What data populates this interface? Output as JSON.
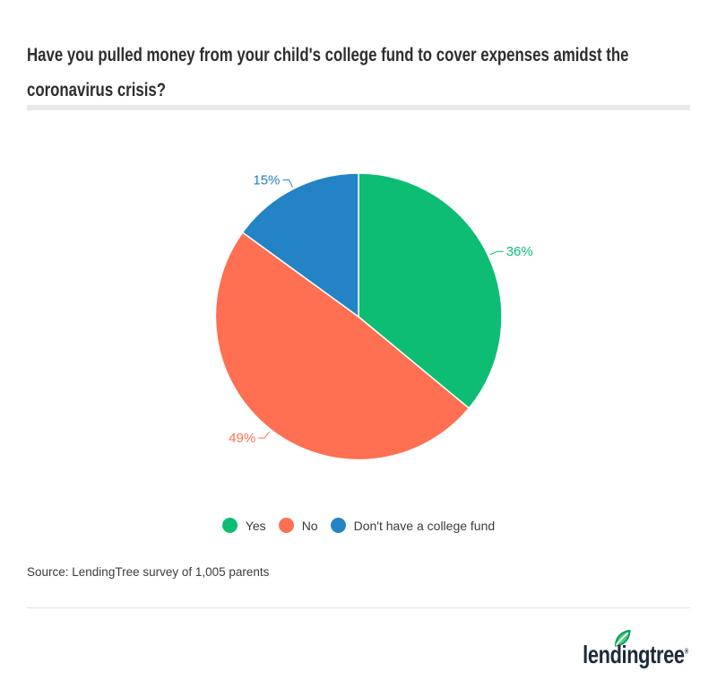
{
  "header": {
    "title_line1": "Have you pulled money from your child's college fund to cover expenses amidst the",
    "title_line2": "coronavirus crisis?"
  },
  "chart_data": {
    "type": "pie",
    "title": "Have you pulled money from your child's college fund to cover expenses amidst the coronavirus crisis?",
    "start_angle_deg": 0,
    "direction": "clockwise",
    "legend_position": "bottom",
    "slices": [
      {
        "label": "Yes",
        "value": 36,
        "data_label": "36%",
        "color": "#0dbd74"
      },
      {
        "label": "No",
        "value": 49,
        "data_label": "49%",
        "color": "#fe7051"
      },
      {
        "label": "Don't have a college fund",
        "value": 15,
        "data_label": "15%",
        "color": "#2383c4"
      }
    ],
    "slice_border_color": "#ffffff"
  },
  "footer": {
    "source": "Source: LendingTree survey of 1,005 parents",
    "logo_text": "lendingtree",
    "logo_registered_mark": "®",
    "logo_color": "#1d2b3a",
    "leaf_icon": "leaf-icon",
    "leaf_color_dark": "#00a05a",
    "leaf_color_light": "#55ca7c"
  }
}
